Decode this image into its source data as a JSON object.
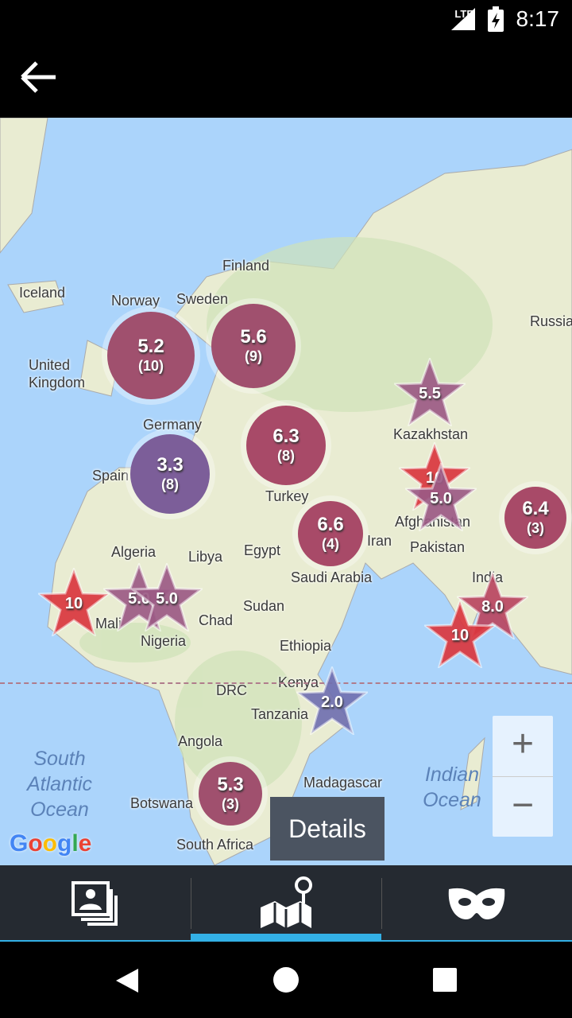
{
  "status": {
    "network": "LTE",
    "time": "8:17"
  },
  "appbar": {
    "back_icon": "arrow-left-icon"
  },
  "map": {
    "countries": [
      "Iceland",
      "Finland",
      "Sweden",
      "Norway",
      "United Kingdom",
      "Russia",
      "Germany",
      "Kazakhstan",
      "Spain",
      "Turkey",
      "Afghanistan",
      "Iran",
      "Pakistan",
      "Algeria",
      "Libya",
      "Egypt",
      "Saudi Arabia",
      "India",
      "Mali",
      "Chad",
      "Sudan",
      "Nigeria",
      "Ethiopia",
      "Kenya",
      "DRC",
      "Tanzania",
      "Angola",
      "Madagascar",
      "Botswana",
      "South Africa"
    ],
    "oceans": [
      "South Atlantic Ocean",
      "Indian Ocean"
    ],
    "clusters": [
      {
        "value": "5.2",
        "count": "(10)",
        "color": "#a0506e"
      },
      {
        "value": "5.6",
        "count": "(9)",
        "color": "#a0506e"
      },
      {
        "value": "6.3",
        "count": "(8)",
        "color": "#a84a68"
      },
      {
        "value": "3.3",
        "count": "(8)",
        "color": "#7c5e99"
      },
      {
        "value": "6.6",
        "count": "(4)",
        "color": "#a84a68"
      },
      {
        "value": "6.4",
        "count": "(3)",
        "color": "#a84a68"
      },
      {
        "value": "5.3",
        "count": "(3)",
        "color": "#a0506e"
      }
    ],
    "stars": [
      {
        "value": "5.5",
        "color": "#9b5a84"
      },
      {
        "value": "10",
        "color": "#d9363e"
      },
      {
        "value": "5.0",
        "color": "#9b5a84"
      },
      {
        "value": "10",
        "color": "#d9363e"
      },
      {
        "value": "5.0",
        "color": "#9b5a84"
      },
      {
        "value": "5.0",
        "color": "#9b5a84"
      },
      {
        "value": "8.0",
        "color": "#b94560"
      },
      {
        "value": "10",
        "color": "#d9363e"
      },
      {
        "value": "2.0",
        "color": "#7070b0"
      }
    ],
    "zoom_in": "+",
    "zoom_out": "−",
    "google_logo": "Google",
    "details_button": "Details"
  },
  "tabs": [
    {
      "icon": "photos-icon"
    },
    {
      "icon": "map-icon",
      "selected": true
    },
    {
      "icon": "mask-icon"
    }
  ],
  "nav": {
    "back": "back-icon",
    "home": "home-icon",
    "recents": "recents-icon"
  }
}
